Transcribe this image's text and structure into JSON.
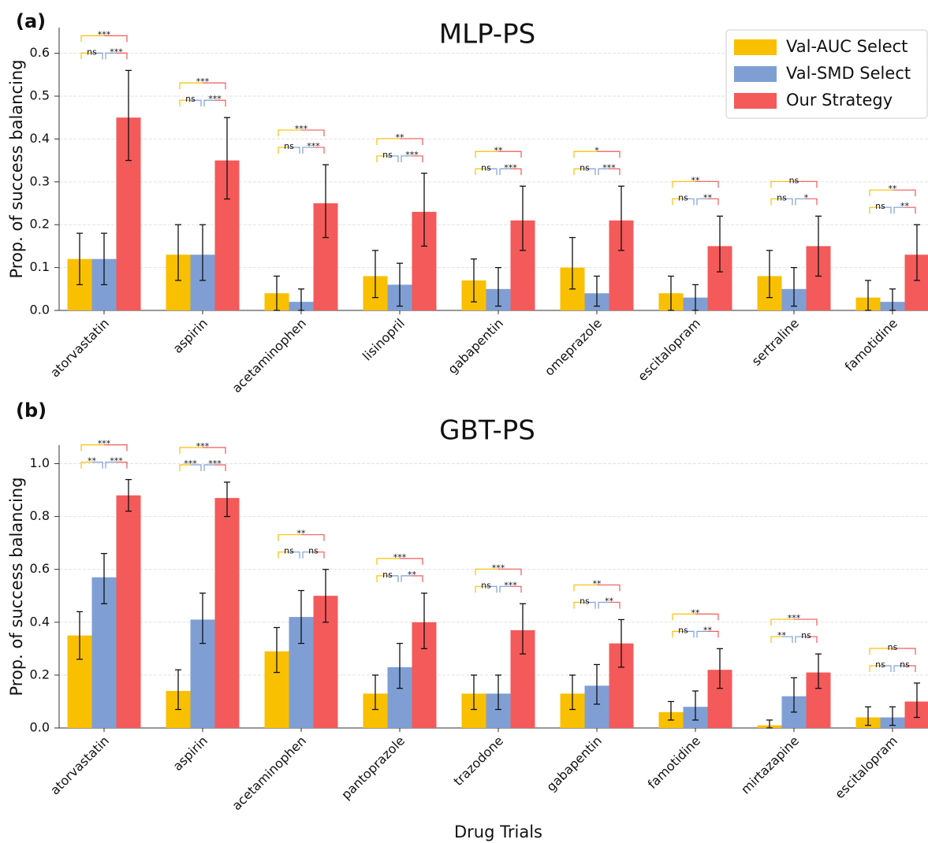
{
  "chart_data": [
    {
      "type": "bar",
      "panel_label": "(a)",
      "title": "MLP-PS",
      "y_label": "Prop. of success balancing",
      "categories": [
        "atorvastatin",
        "aspirin",
        "acetaminophen",
        "lisinopril",
        "gabapentin",
        "omeprazole",
        "escitalopram",
        "sertraline",
        "famotidine"
      ],
      "series": [
        {
          "name": "Val-AUC Select",
          "color": "#f9c000",
          "values": [
            0.12,
            0.13,
            0.04,
            0.08,
            0.07,
            0.1,
            0.04,
            0.08,
            0.03
          ],
          "lower": [
            0.06,
            0.07,
            0.0,
            0.03,
            0.02,
            0.05,
            0.0,
            0.03,
            0.0
          ],
          "upper": [
            0.18,
            0.2,
            0.08,
            0.14,
            0.12,
            0.17,
            0.08,
            0.14,
            0.07
          ]
        },
        {
          "name": "Val-SMD Select",
          "color": "#7f9fd4",
          "values": [
            0.12,
            0.13,
            0.02,
            0.06,
            0.05,
            0.04,
            0.03,
            0.05,
            0.02
          ],
          "lower": [
            0.06,
            0.07,
            0.0,
            0.01,
            0.01,
            0.01,
            0.0,
            0.01,
            0.0
          ],
          "upper": [
            0.18,
            0.2,
            0.05,
            0.11,
            0.1,
            0.08,
            0.06,
            0.1,
            0.05
          ]
        },
        {
          "name": "Our Strategy",
          "color": "#f45a5a",
          "values": [
            0.45,
            0.35,
            0.25,
            0.23,
            0.21,
            0.21,
            0.15,
            0.15,
            0.13
          ],
          "lower": [
            0.35,
            0.26,
            0.17,
            0.15,
            0.14,
            0.14,
            0.09,
            0.08,
            0.07
          ],
          "upper": [
            0.56,
            0.45,
            0.34,
            0.32,
            0.29,
            0.29,
            0.22,
            0.22,
            0.2
          ]
        }
      ],
      "significance": [
        {
          "auc_vs_ours": "***",
          "auc_vs_smd": "ns",
          "smd_vs_ours": "***"
        },
        {
          "auc_vs_ours": "***",
          "auc_vs_smd": "ns",
          "smd_vs_ours": "***"
        },
        {
          "auc_vs_ours": "***",
          "auc_vs_smd": "ns",
          "smd_vs_ours": "***"
        },
        {
          "auc_vs_ours": "**",
          "auc_vs_smd": "ns",
          "smd_vs_ours": "***"
        },
        {
          "auc_vs_ours": "**",
          "auc_vs_smd": "ns",
          "smd_vs_ours": "***"
        },
        {
          "auc_vs_ours": "*",
          "auc_vs_smd": "ns",
          "smd_vs_ours": "***"
        },
        {
          "auc_vs_ours": "**",
          "auc_vs_smd": "ns",
          "smd_vs_ours": "**"
        },
        {
          "auc_vs_ours": "ns",
          "auc_vs_smd": "ns",
          "smd_vs_ours": "*"
        },
        {
          "auc_vs_ours": "**",
          "auc_vs_smd": "ns",
          "smd_vs_ours": "**"
        }
      ],
      "ylim": [
        0,
        0.66
      ],
      "yticks": [
        {
          "value": 0,
          "label": "0.0"
        },
        0.1,
        0.2,
        0.3,
        0.4,
        0.5,
        0.6
      ],
      "grid": true,
      "legend": "upper right"
    },
    {
      "type": "bar",
      "panel_label": "(b)",
      "title": "GBT-PS",
      "y_label": "Prop. of success balancing",
      "x_label": "Drug Trials",
      "categories": [
        "atorvastatin",
        "aspirin",
        "acetaminophen",
        "pantoprazole",
        "trazodone",
        "gabapentin",
        "famotidine",
        "mirtazapine",
        "escitalopram"
      ],
      "series": [
        {
          "color": "#f9c000",
          "values": [
            0.35,
            0.14,
            0.29,
            0.13,
            0.13,
            0.13,
            0.06,
            0.01,
            0.04
          ],
          "lower": [
            0.26,
            0.07,
            0.21,
            0.07,
            0.07,
            0.07,
            0.03,
            0.0,
            0.01
          ],
          "upper": [
            0.44,
            0.22,
            0.38,
            0.2,
            0.2,
            0.2,
            0.1,
            0.03,
            0.08
          ]
        },
        {
          "color": "#7f9fd4",
          "values": [
            0.57,
            0.41,
            0.42,
            0.23,
            0.13,
            0.16,
            0.08,
            0.12,
            0.04
          ],
          "lower": [
            0.47,
            0.32,
            0.32,
            0.15,
            0.07,
            0.09,
            0.03,
            0.06,
            0.01
          ],
          "upper": [
            0.66,
            0.51,
            0.52,
            0.32,
            0.2,
            0.24,
            0.14,
            0.19,
            0.08
          ]
        },
        {
          "color": "#f45a5a",
          "values": [
            0.88,
            0.87,
            0.5,
            0.4,
            0.37,
            0.32,
            0.22,
            0.21,
            0.1
          ],
          "lower": [
            0.82,
            0.8,
            0.4,
            0.3,
            0.28,
            0.23,
            0.15,
            0.15,
            0.04
          ],
          "upper": [
            0.94,
            0.93,
            0.6,
            0.51,
            0.47,
            0.41,
            0.3,
            0.28,
            0.17
          ]
        }
      ],
      "significance": [
        {
          "auc_vs_ours": "***",
          "auc_vs_smd": "**",
          "smd_vs_ours": "***"
        },
        {
          "auc_vs_ours": "***",
          "auc_vs_smd": "***",
          "smd_vs_ours": "***"
        },
        {
          "auc_vs_ours": "**",
          "auc_vs_smd": "ns",
          "smd_vs_ours": "ns"
        },
        {
          "auc_vs_ours": "***",
          "auc_vs_smd": "ns",
          "smd_vs_ours": "**"
        },
        {
          "auc_vs_ours": "***",
          "auc_vs_smd": "ns",
          "smd_vs_ours": "***"
        },
        {
          "auc_vs_ours": "**",
          "auc_vs_smd": "ns",
          "smd_vs_ours": "**"
        },
        {
          "auc_vs_ours": "**",
          "auc_vs_smd": "ns",
          "smd_vs_ours": "**"
        },
        {
          "auc_vs_ours": "***",
          "auc_vs_smd": "**",
          "smd_vs_ours": "ns"
        },
        {
          "auc_vs_ours": "ns",
          "auc_vs_smd": "ns",
          "smd_vs_ours": "ns"
        }
      ],
      "ylim": [
        0,
        1.07
      ],
      "yticks": [
        {
          "value": 0,
          "label": "0.0"
        },
        {
          "value": 0.2,
          "label": "0.2"
        },
        {
          "value": 0.4,
          "label": "0.4"
        },
        {
          "value": 0.6,
          "label": "0.6"
        },
        {
          "value": 0.8,
          "label": "0.8"
        },
        {
          "value": 1,
          "label": "1.0"
        }
      ],
      "grid": true
    }
  ]
}
